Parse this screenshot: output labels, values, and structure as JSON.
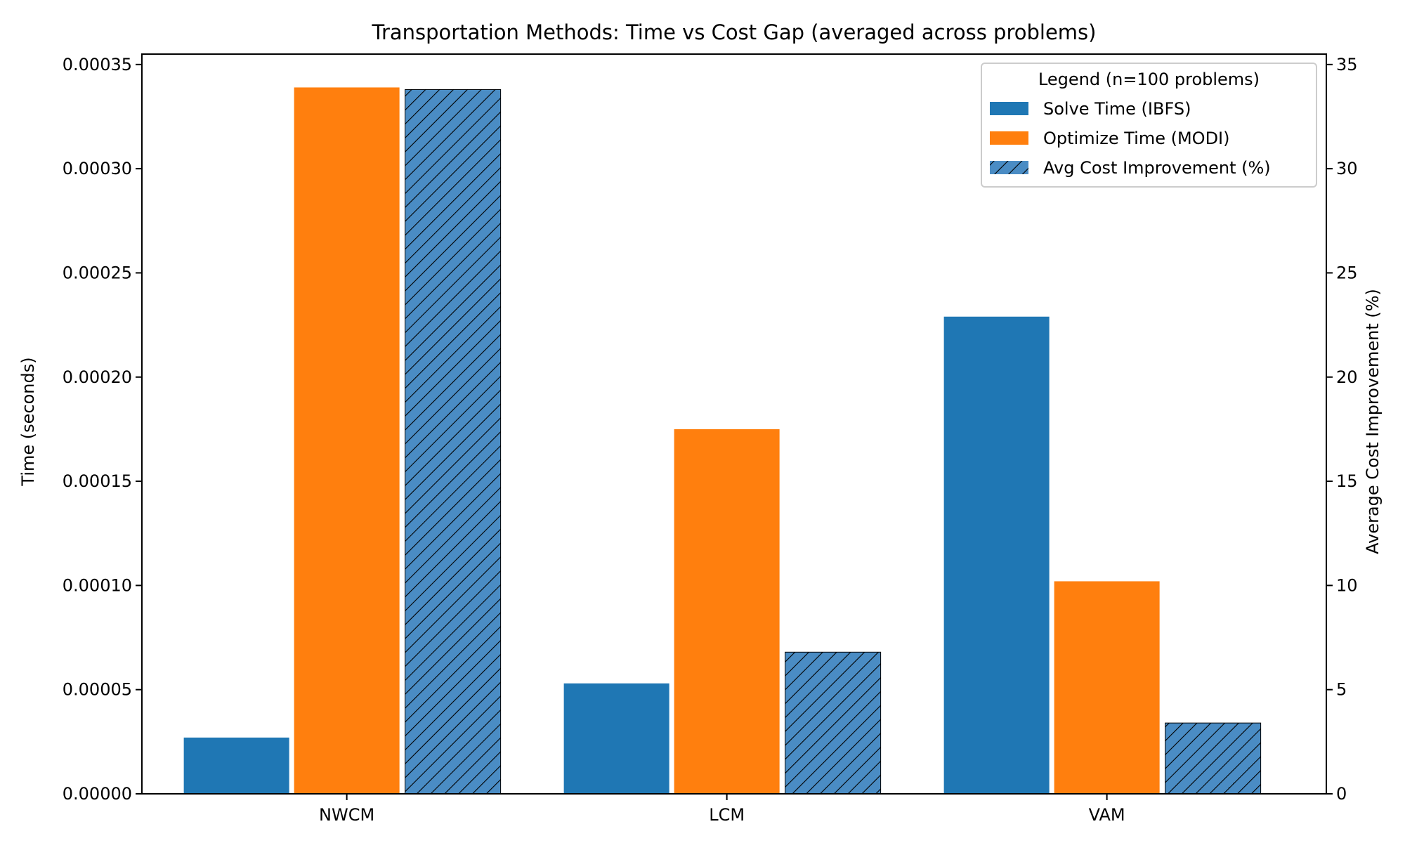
{
  "chart_data": {
    "type": "bar",
    "title": "Transportation Methods: Time vs Cost Gap (averaged across problems)",
    "categories": [
      "NWCM",
      "LCM",
      "VAM"
    ],
    "ylabel_left": "Time (seconds)",
    "ylabel_right": "Average Cost Improvement (%)",
    "ylim_left": [
      0,
      0.000355
    ],
    "ylim_right": [
      0,
      35.5
    ],
    "yticks_left": [
      "0.00000",
      "0.00005",
      "0.00010",
      "0.00015",
      "0.00020",
      "0.00025",
      "0.00030",
      "0.00035"
    ],
    "yticks_right": [
      "0",
      "5",
      "10",
      "15",
      "20",
      "25",
      "30",
      "35"
    ],
    "legend_title": "Legend (n=100 problems)",
    "legend_position": "top-right",
    "grid": false,
    "series": [
      {
        "name": "Solve Time (IBFS)",
        "axis": "left",
        "color": "#1f77b4",
        "hatch": false,
        "values": [
          2.7e-05,
          5.3e-05,
          0.000229
        ]
      },
      {
        "name": "Optimize Time (MODI)",
        "axis": "left",
        "color": "#ff7f0e",
        "hatch": false,
        "values": [
          0.000339,
          0.000175,
          0.000102
        ]
      },
      {
        "name": "Avg Cost Improvement (%)",
        "axis": "right",
        "color": "#4a8cc4",
        "hatch": true,
        "values": [
          33.8,
          6.8,
          3.4
        ]
      }
    ]
  }
}
